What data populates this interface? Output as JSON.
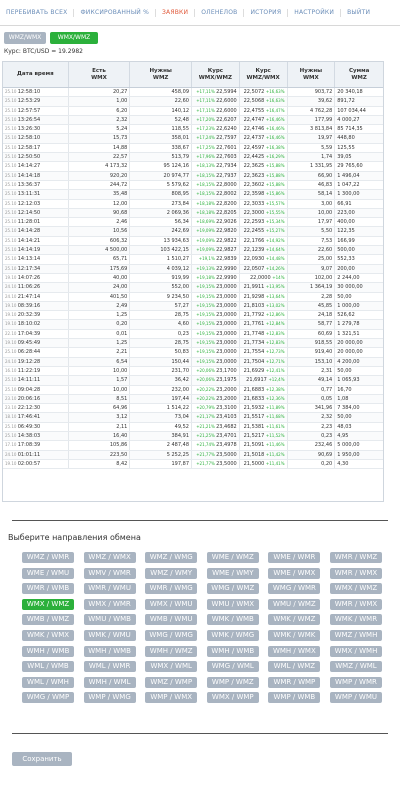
{
  "nav": [
    {
      "label": "ПЕРЕБИВАТЬ ВСЕХ",
      "active": false
    },
    {
      "label": "ФИКСИРОВАННЫЙ %",
      "active": false
    },
    {
      "label": "ЗАЯВКИ",
      "active": true
    },
    {
      "label": "ОЛЕНЕЛОВ",
      "active": false
    },
    {
      "label": "ИСТОРИЯ",
      "active": false
    },
    {
      "label": "НАСТРОЙКИ",
      "active": false
    },
    {
      "label": "ВЫЙТИ",
      "active": false
    }
  ],
  "pairs": {
    "first": "WMZ/WMX",
    "second": "WMX/WMZ"
  },
  "rate_text": "Курс: BTC/USD = 19.2982",
  "table": {
    "headers": [
      [
        "Дата время",
        ""
      ],
      [
        "Есть",
        "WMX"
      ],
      [
        "Нужны",
        "WMZ"
      ],
      [
        "Курс",
        "WMX/WMZ"
      ],
      [
        "Курс",
        "WMZ/WMX"
      ],
      [
        "Нужны",
        "WMX"
      ],
      [
        "Сумма",
        "WMZ"
      ]
    ],
    "rows": [
      [
        "25.10",
        "12:58:10",
        "20,27",
        "458,09",
        "+17,11%",
        "22,5994",
        "22,5072",
        "+16,63%",
        "903,72",
        "20 340,18"
      ],
      [
        "25.10",
        "12:53:29",
        "1,00",
        "22,60",
        "+17,11%",
        "22,6000",
        "22,5068",
        "+16,63%",
        "39,62",
        "891,72"
      ],
      [
        "25.10",
        "12:57:57",
        "6,20",
        "140,12",
        "+17,11%",
        "22,6000",
        "22,4755",
        "+16,47%",
        "4 762,28",
        "107 034,44"
      ],
      [
        "25.10",
        "13:26:54",
        "2,32",
        "52,48",
        "+17,20%",
        "22,6207",
        "22,4747",
        "+16,46%",
        "177,99",
        "4 000,27"
      ],
      [
        "25.10",
        "13:26:30",
        "5,24",
        "118,55",
        "+17,23%",
        "22,6240",
        "22,4746",
        "+16,46%",
        "3 813,84",
        "85 714,35"
      ],
      [
        "25.10",
        "12:58:10",
        "15,73",
        "358,01",
        "+17,24%",
        "22,7597",
        "22,4737",
        "+16,46%",
        "19,97",
        "448,80"
      ],
      [
        "25.10",
        "12:58:17",
        "14,88",
        "338,67",
        "+17,25%",
        "22,7601",
        "22,4597",
        "+16,38%",
        "5,59",
        "125,55"
      ],
      [
        "25.10",
        "12:50:50",
        "22,57",
        "513,79",
        "+17,96%",
        "22,7603",
        "22,4425",
        "+16,29%",
        "1,74",
        "39,05"
      ],
      [
        "25.10",
        "14:14:27",
        "4 173,32",
        "95 124,16",
        "+18,13%",
        "22,7934",
        "22,3625",
        "+15,88%",
        "1 331,95",
        "29 765,60"
      ],
      [
        "25.10",
        "14:14:18",
        "920,20",
        "20 974,77",
        "+18,15%",
        "22,7937",
        "22,3623",
        "+15,88%",
        "66,90",
        "1 496,04"
      ],
      [
        "25.10",
        "13:36:37",
        "244,72",
        "5 579,62",
        "+18,15%",
        "22,8000",
        "22,3602",
        "+15,88%",
        "46,83",
        "1 047,22"
      ],
      [
        "25.10",
        "13:11:31",
        "35,48",
        "808,95",
        "+18,15%",
        "22,8002",
        "22,3598",
        "+15,86%",
        "58,14",
        "1 300,00"
      ],
      [
        "25.10",
        "12:12:03",
        "12,00",
        "273,84",
        "+18,18%",
        "22,8200",
        "22,3033",
        "+15,57%",
        "3,00",
        "66,91"
      ],
      [
        "25.10",
        "12:14:50",
        "90,68",
        "2 069,36",
        "+18,18%",
        "22,8205",
        "22,3000",
        "+15,55%",
        "10,00",
        "223,00"
      ],
      [
        "25.10",
        "11:28:01",
        "2,46",
        "56,34",
        "+18,69%",
        "22,9026",
        "22,2593",
        "+15,34%",
        "17,97",
        "400,00"
      ],
      [
        "25.10",
        "14:14:28",
        "10,56",
        "242,69",
        "+19,09%",
        "22,9820",
        "22,2455",
        "+15,27%",
        "5,50",
        "122,35"
      ],
      [
        "25.10",
        "14:14:21",
        "606,32",
        "13 934,63",
        "+19,09%",
        "22,9822",
        "22,1766",
        "+14,92%",
        "7,53",
        "166,99"
      ],
      [
        "25.10",
        "14:14:19",
        "4 500,00",
        "103 422,15",
        "+19,09%",
        "22,9827",
        "22,1239",
        "+14,64%",
        "22,60",
        "500,00"
      ],
      [
        "25.10",
        "14:13:14",
        "65,71",
        "1 510,27",
        "+19,1%",
        "22,9839",
        "22,0930",
        "+14,48%",
        "25,00",
        "552,33"
      ],
      [
        "25.10",
        "12:17:34",
        "175,69",
        "4 039,12",
        "+19,13%",
        "22,9990",
        "22,0507",
        "+14,26%",
        "9,07",
        "200,00"
      ],
      [
        "19.10",
        "14:07:26",
        "40,00",
        "919,99",
        "+19,18%",
        "22,9990",
        "22,0000",
        "+14%",
        "102,00",
        "2 244,00"
      ],
      [
        "24.10",
        "11:06:26",
        "24,00",
        "552,00",
        "+19,15%",
        "23,0000",
        "21,9911",
        "+13,95%",
        "1 364,19",
        "30 000,00"
      ],
      [
        "24.10",
        "21:47:14",
        "401,50",
        "9 234,50",
        "+19,15%",
        "23,0000",
        "21,9298",
        "+13,64%",
        "2,28",
        "50,00"
      ],
      [
        "19.10",
        "08:39:16",
        "2,49",
        "57,27",
        "+19,15%",
        "23,0000",
        "21,8103",
        "+13,02%",
        "45,85",
        "1 000,00"
      ],
      [
        "19.10",
        "20:32:39",
        "1,25",
        "28,75",
        "+19,15%",
        "23,0000",
        "21,7792",
        "+12,86%",
        "24,18",
        "526,62"
      ],
      [
        "19.10",
        "18:10:02",
        "0,20",
        "4,60",
        "+19,15%",
        "23,0000",
        "21,7761",
        "+12,84%",
        "58,77",
        "1 279,78"
      ],
      [
        "22.10",
        "17:04:39",
        "0,01",
        "0,23",
        "+19,15%",
        "23,0000",
        "21,7748",
        "+12,83%",
        "60,69",
        "1 321,51"
      ],
      [
        "19.10",
        "09:45:49",
        "1,25",
        "28,75",
        "+19,15%",
        "23,0000",
        "21,7734",
        "+12,83%",
        "918,55",
        "20 000,00"
      ],
      [
        "25.10",
        "06:28:44",
        "2,21",
        "50,83",
        "+19,15%",
        "23,0000",
        "21,7554",
        "+12,73%",
        "919,40",
        "20 000,00"
      ],
      [
        "24.10",
        "19:12:28",
        "6,54",
        "150,44",
        "+19,15%",
        "23,0000",
        "21,7504",
        "+12,71%",
        "153,10",
        "4 200,00"
      ],
      [
        "16.10",
        "11:22:19",
        "10,00",
        "231,70",
        "+20,06%",
        "23,1700",
        "21,6929",
        "+12,41%",
        "2,31",
        "50,00"
      ],
      [
        "25.10",
        "14:11:11",
        "1,57",
        "36,42",
        "+20,06%",
        "23,1975",
        "21,6917",
        "+12,4%",
        "49,14",
        "1 065,93"
      ],
      [
        "25.10",
        "09:04:28",
        "10,00",
        "232,00",
        "+20,22%",
        "23,2000",
        "21,6883",
        "+12,38%",
        "0,77",
        "16,70"
      ],
      [
        "23.10",
        "20:06:16",
        "8,51",
        "197,44",
        "+20,22%",
        "23,2000",
        "21,6833",
        "+12,36%",
        "0,05",
        "1,08"
      ],
      [
        "23.10",
        "22:12:30",
        "64,96",
        "1 514,22",
        "+20,79%",
        "23,3100",
        "21,5932",
        "+11,89%",
        "341,96",
        "7 384,00"
      ],
      [
        "18.10",
        "17:46:41",
        "3,12",
        "73,04",
        "+21,17%",
        "23,4103",
        "21,5517",
        "+11,68%",
        "2,32",
        "50,00"
      ],
      [
        "25.10",
        "06:49:30",
        "2,11",
        "49,52",
        "+21,21%",
        "23,4682",
        "21,5381",
        "+11,61%",
        "2,23",
        "48,03"
      ],
      [
        "25.10",
        "14:38:03",
        "16,40",
        "384,91",
        "+21,25%",
        "23,4701",
        "21,5217",
        "+11,52%",
        "0,23",
        "4,95"
      ],
      [
        "17.10",
        "17:08:39",
        "105,86",
        "2 487,48",
        "+21,74%",
        "23,4978",
        "21,5091",
        "+11,46%",
        "232,46",
        "5 000,00"
      ],
      [
        "24.10",
        "01:01:11",
        "223,50",
        "5 252,25",
        "+21,77%",
        "23,5000",
        "21,5018",
        "+11,42%",
        "90,69",
        "1 950,00"
      ],
      [
        "19.10",
        "02:00:57",
        "8,42",
        "197,87",
        "+21,77%",
        "23,5000",
        "21,5000",
        "+11,41%",
        "0,20",
        "4,30"
      ]
    ]
  },
  "direction_title": "Выберите направления обмена",
  "directions": [
    "WMZ / WMR",
    "WMZ / WMX",
    "WMZ / WMG",
    "WME / WMZ",
    "WME / WMR",
    "WMR / WMZ",
    "WME / WMU",
    "WMV / WMR",
    "WMZ / WMY",
    "WME / WMY",
    "WME / WMX",
    "WMR / WMX",
    "WMR / WMB",
    "WMR / WMU",
    "WMR / WMG",
    "WMG / WMZ",
    "WMG / WMR",
    "WMX / WMZ",
    "WMX / WMZ",
    "WMX / WMR",
    "WMX / WMU",
    "WMU / WMX",
    "WMU / WMZ",
    "WMR / WMX",
    "WMB / WMZ",
    "WMU / WMB",
    "WMB / WMU",
    "WMK / WMB",
    "WMK / WMZ",
    "WMK / WMR",
    "WMK / WMX",
    "WMK / WMU",
    "WMG / WMG",
    "WMK / WMG",
    "WMK / WMK",
    "WMZ / WMH",
    "WMH / WMB",
    "WMH / WMB",
    "WMH / WMZ",
    "WMH / WMB",
    "WMH / WMX",
    "WMX / WMH",
    "WML / WMB",
    "WML / WMR",
    "WMX / WML",
    "WMG / WML",
    "WML / WMZ",
    "WMZ / WML",
    "WML / WMH",
    "WMH / WML",
    "WMZ / WMP",
    "WMP / WMZ",
    "WMR / WMP",
    "WMP / WMR",
    "WMG / WMP",
    "WMP / WMG",
    "WMP / WMX",
    "WMX / WMP",
    "WMP / WMB",
    "WMP / WMU"
  ],
  "selected_direction_index": 18,
  "save_label": "Сохранить"
}
